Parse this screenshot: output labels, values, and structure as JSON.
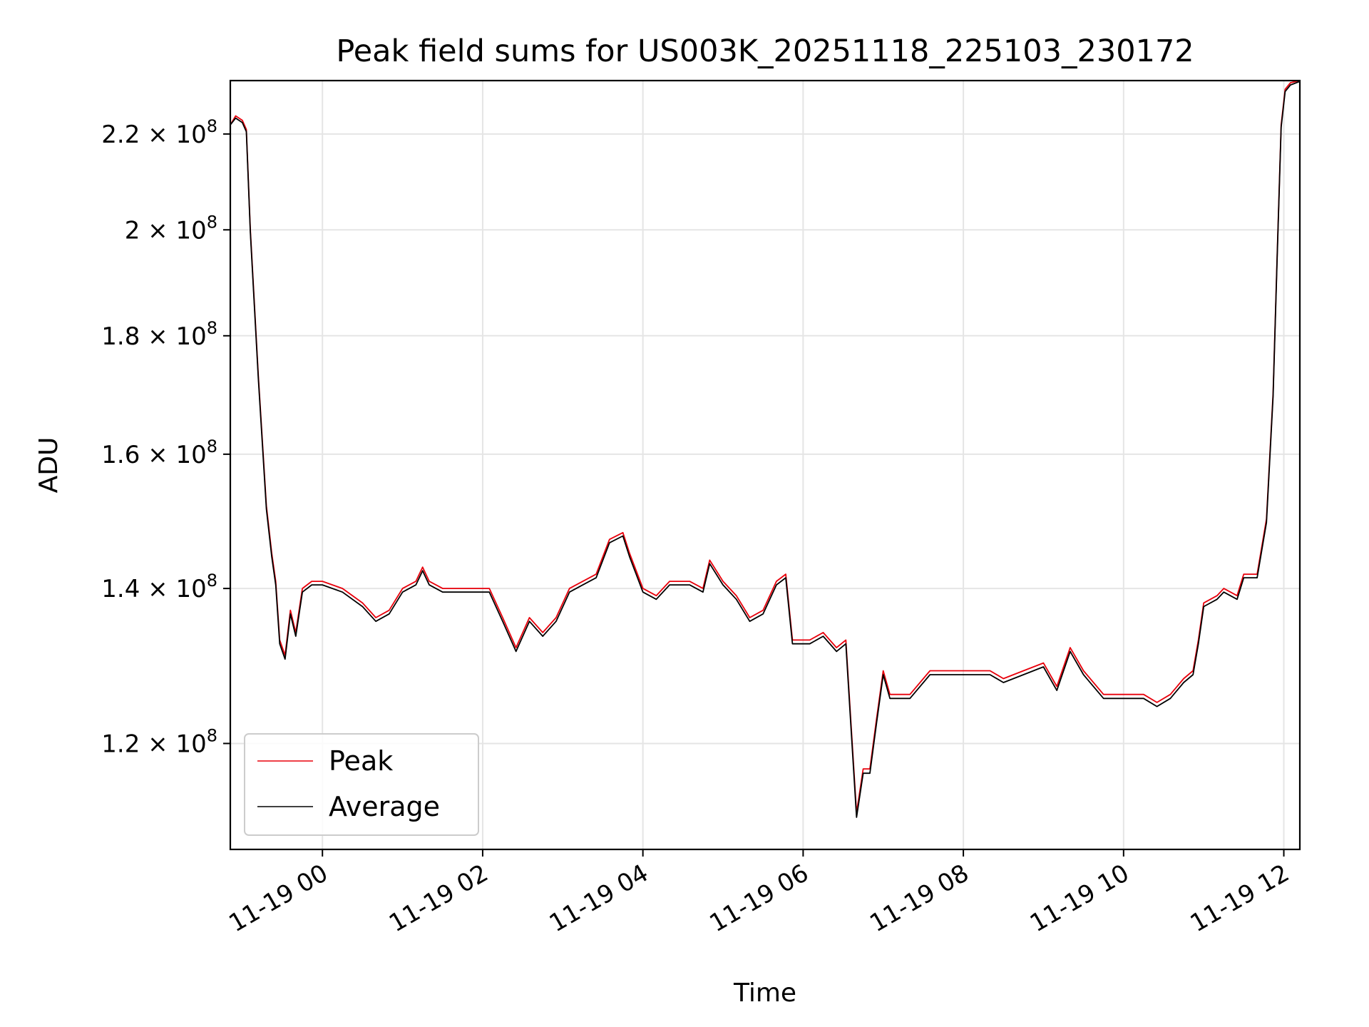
{
  "chart_data": {
    "type": "line",
    "title": "Peak field sums for US003K_20251118_225103_230172",
    "xlabel": "Time",
    "ylabel": "ADU",
    "yscale": "log",
    "xlim": [
      "2025-11-18 22:51",
      "2025-11-19 12:12"
    ],
    "ylim": [
      108000000,
      232000000
    ],
    "grid": true,
    "legend_position": "lower-left",
    "x_ticks": [
      {
        "value": "2025-11-19 00:00",
        "label": "11-19 00"
      },
      {
        "value": "2025-11-19 02:00",
        "label": "11-19 02"
      },
      {
        "value": "2025-11-19 04:00",
        "label": "11-19 04"
      },
      {
        "value": "2025-11-19 06:00",
        "label": "11-19 06"
      },
      {
        "value": "2025-11-19 08:00",
        "label": "11-19 08"
      },
      {
        "value": "2025-11-19 10:00",
        "label": "11-19 10"
      },
      {
        "value": "2025-11-19 12:00",
        "label": "11-19 12"
      }
    ],
    "y_ticks": [
      {
        "value": 120000000,
        "mantissa": "1.2"
      },
      {
        "value": 140000000,
        "mantissa": "1.4"
      },
      {
        "value": 160000000,
        "mantissa": "1.6"
      },
      {
        "value": 180000000,
        "mantissa": "1.8"
      },
      {
        "value": 200000000,
        "mantissa": "2"
      },
      {
        "value": 220000000,
        "mantissa": "2.2"
      }
    ],
    "y_tick_base": "10",
    "y_tick_exponent": "8",
    "series": [
      {
        "name": "Peak",
        "color": "#e8000b",
        "points": [
          [
            "2025-11-18 22:51",
            222000000
          ],
          [
            "2025-11-18 22:55",
            224000000
          ],
          [
            "2025-11-18 23:00",
            223000000
          ],
          [
            "2025-11-18 23:03",
            221000000
          ],
          [
            "2025-11-18 23:06",
            200000000
          ],
          [
            "2025-11-18 23:12",
            173000000
          ],
          [
            "2025-11-18 23:18",
            152000000
          ],
          [
            "2025-11-18 23:22",
            145000000
          ],
          [
            "2025-11-18 23:25",
            141000000
          ],
          [
            "2025-11-18 23:28",
            133000000
          ],
          [
            "2025-11-18 23:32",
            131000000
          ],
          [
            "2025-11-18 23:36",
            137000000
          ],
          [
            "2025-11-18 23:40",
            134000000
          ],
          [
            "2025-11-18 23:45",
            140000000
          ],
          [
            "2025-11-18 23:52",
            141000000
          ],
          [
            "2025-11-19 00:00",
            141000000
          ],
          [
            "2025-11-19 00:15",
            140000000
          ],
          [
            "2025-11-19 00:30",
            138000000
          ],
          [
            "2025-11-19 00:40",
            136000000
          ],
          [
            "2025-11-19 00:50",
            137000000
          ],
          [
            "2025-11-19 01:00",
            140000000
          ],
          [
            "2025-11-19 01:10",
            141000000
          ],
          [
            "2025-11-19 01:15",
            143000000
          ],
          [
            "2025-11-19 01:20",
            141000000
          ],
          [
            "2025-11-19 01:30",
            140000000
          ],
          [
            "2025-11-19 01:50",
            140000000
          ],
          [
            "2025-11-19 02:05",
            140000000
          ],
          [
            "2025-11-19 02:15",
            136000000
          ],
          [
            "2025-11-19 02:25",
            132000000
          ],
          [
            "2025-11-19 02:35",
            136000000
          ],
          [
            "2025-11-19 02:45",
            134000000
          ],
          [
            "2025-11-19 02:55",
            136000000
          ],
          [
            "2025-11-19 03:05",
            140000000
          ],
          [
            "2025-11-19 03:15",
            141000000
          ],
          [
            "2025-11-19 03:25",
            142000000
          ],
          [
            "2025-11-19 03:35",
            147000000
          ],
          [
            "2025-11-19 03:45",
            148000000
          ],
          [
            "2025-11-19 03:50",
            145000000
          ],
          [
            "2025-11-19 04:00",
            140000000
          ],
          [
            "2025-11-19 04:10",
            139000000
          ],
          [
            "2025-11-19 04:20",
            141000000
          ],
          [
            "2025-11-19 04:35",
            141000000
          ],
          [
            "2025-11-19 04:45",
            140000000
          ],
          [
            "2025-11-19 04:50",
            144000000
          ],
          [
            "2025-11-19 05:00",
            141000000
          ],
          [
            "2025-11-19 05:10",
            139000000
          ],
          [
            "2025-11-19 05:20",
            136000000
          ],
          [
            "2025-11-19 05:30",
            137000000
          ],
          [
            "2025-11-19 05:40",
            141000000
          ],
          [
            "2025-11-19 05:47",
            142000000
          ],
          [
            "2025-11-19 05:52",
            133000000
          ],
          [
            "2025-11-19 06:05",
            133000000
          ],
          [
            "2025-11-19 06:15",
            134000000
          ],
          [
            "2025-11-19 06:25",
            132000000
          ],
          [
            "2025-11-19 06:32",
            133000000
          ],
          [
            "2025-11-19 06:36",
            122000000
          ],
          [
            "2025-11-19 06:40",
            112000000
          ],
          [
            "2025-11-19 06:45",
            117000000
          ],
          [
            "2025-11-19 06:50",
            117000000
          ],
          [
            "2025-11-19 06:55",
            123000000
          ],
          [
            "2025-11-19 07:00",
            129000000
          ],
          [
            "2025-11-19 07:05",
            126000000
          ],
          [
            "2025-11-19 07:20",
            126000000
          ],
          [
            "2025-11-19 07:35",
            129000000
          ],
          [
            "2025-11-19 07:50",
            129000000
          ],
          [
            "2025-11-19 08:05",
            129000000
          ],
          [
            "2025-11-19 08:20",
            129000000
          ],
          [
            "2025-11-19 08:30",
            128000000
          ],
          [
            "2025-11-19 08:45",
            129000000
          ],
          [
            "2025-11-19 09:00",
            130000000
          ],
          [
            "2025-11-19 09:10",
            127000000
          ],
          [
            "2025-11-19 09:20",
            132000000
          ],
          [
            "2025-11-19 09:30",
            129000000
          ],
          [
            "2025-11-19 09:45",
            126000000
          ],
          [
            "2025-11-19 10:00",
            126000000
          ],
          [
            "2025-11-19 10:15",
            126000000
          ],
          [
            "2025-11-19 10:25",
            125000000
          ],
          [
            "2025-11-19 10:35",
            126000000
          ],
          [
            "2025-11-19 10:45",
            128000000
          ],
          [
            "2025-11-19 10:52",
            129000000
          ],
          [
            "2025-11-19 10:56",
            133000000
          ],
          [
            "2025-11-19 11:00",
            138000000
          ],
          [
            "2025-11-19 11:10",
            139000000
          ],
          [
            "2025-11-19 11:15",
            140000000
          ],
          [
            "2025-11-19 11:25",
            139000000
          ],
          [
            "2025-11-19 11:30",
            142000000
          ],
          [
            "2025-11-19 11:40",
            142000000
          ],
          [
            "2025-11-19 11:47",
            150000000
          ],
          [
            "2025-11-19 11:52",
            170000000
          ],
          [
            "2025-11-19 11:55",
            195000000
          ],
          [
            "2025-11-19 11:58",
            222000000
          ],
          [
            "2025-11-19 12:01",
            230000000
          ],
          [
            "2025-11-19 12:05",
            231500000
          ],
          [
            "2025-11-19 12:12",
            232000000
          ]
        ]
      },
      {
        "name": "Average",
        "color": "#000000",
        "points": [
          [
            "2025-11-18 22:51",
            222000000
          ],
          [
            "2025-11-18 22:55",
            223500000
          ],
          [
            "2025-11-18 23:00",
            222500000
          ],
          [
            "2025-11-18 23:03",
            220500000
          ],
          [
            "2025-11-18 23:06",
            199500000
          ],
          [
            "2025-11-18 23:12",
            172500000
          ],
          [
            "2025-11-18 23:18",
            151500000
          ],
          [
            "2025-11-18 23:22",
            144500000
          ],
          [
            "2025-11-18 23:25",
            140500000
          ],
          [
            "2025-11-18 23:28",
            132500000
          ],
          [
            "2025-11-18 23:32",
            130500000
          ],
          [
            "2025-11-18 23:36",
            136500000
          ],
          [
            "2025-11-18 23:40",
            133500000
          ],
          [
            "2025-11-18 23:45",
            139500000
          ],
          [
            "2025-11-18 23:52",
            140500000
          ],
          [
            "2025-11-19 00:00",
            140500000
          ],
          [
            "2025-11-19 00:15",
            139500000
          ],
          [
            "2025-11-19 00:30",
            137500000
          ],
          [
            "2025-11-19 00:40",
            135500000
          ],
          [
            "2025-11-19 00:50",
            136500000
          ],
          [
            "2025-11-19 01:00",
            139500000
          ],
          [
            "2025-11-19 01:10",
            140500000
          ],
          [
            "2025-11-19 01:15",
            142500000
          ],
          [
            "2025-11-19 01:20",
            140500000
          ],
          [
            "2025-11-19 01:30",
            139500000
          ],
          [
            "2025-11-19 01:50",
            139500000
          ],
          [
            "2025-11-19 02:05",
            139500000
          ],
          [
            "2025-11-19 02:15",
            135500000
          ],
          [
            "2025-11-19 02:25",
            131500000
          ],
          [
            "2025-11-19 02:35",
            135500000
          ],
          [
            "2025-11-19 02:45",
            133500000
          ],
          [
            "2025-11-19 02:55",
            135500000
          ],
          [
            "2025-11-19 03:05",
            139500000
          ],
          [
            "2025-11-19 03:15",
            140500000
          ],
          [
            "2025-11-19 03:25",
            141500000
          ],
          [
            "2025-11-19 03:35",
            146500000
          ],
          [
            "2025-11-19 03:45",
            147500000
          ],
          [
            "2025-11-19 03:50",
            144500000
          ],
          [
            "2025-11-19 04:00",
            139500000
          ],
          [
            "2025-11-19 04:10",
            138500000
          ],
          [
            "2025-11-19 04:20",
            140500000
          ],
          [
            "2025-11-19 04:35",
            140500000
          ],
          [
            "2025-11-19 04:45",
            139500000
          ],
          [
            "2025-11-19 04:50",
            143500000
          ],
          [
            "2025-11-19 05:00",
            140500000
          ],
          [
            "2025-11-19 05:10",
            138500000
          ],
          [
            "2025-11-19 05:20",
            135500000
          ],
          [
            "2025-11-19 05:30",
            136500000
          ],
          [
            "2025-11-19 05:40",
            140500000
          ],
          [
            "2025-11-19 05:47",
            141500000
          ],
          [
            "2025-11-19 05:52",
            132500000
          ],
          [
            "2025-11-19 06:05",
            132500000
          ],
          [
            "2025-11-19 06:15",
            133500000
          ],
          [
            "2025-11-19 06:25",
            131500000
          ],
          [
            "2025-11-19 06:32",
            132500000
          ],
          [
            "2025-11-19 06:36",
            121500000
          ],
          [
            "2025-11-19 06:40",
            111500000
          ],
          [
            "2025-11-19 06:45",
            116500000
          ],
          [
            "2025-11-19 06:50",
            116500000
          ],
          [
            "2025-11-19 06:55",
            122500000
          ],
          [
            "2025-11-19 07:00",
            128500000
          ],
          [
            "2025-11-19 07:05",
            125500000
          ],
          [
            "2025-11-19 07:20",
            125500000
          ],
          [
            "2025-11-19 07:35",
            128500000
          ],
          [
            "2025-11-19 07:50",
            128500000
          ],
          [
            "2025-11-19 08:05",
            128500000
          ],
          [
            "2025-11-19 08:20",
            128500000
          ],
          [
            "2025-11-19 08:30",
            127500000
          ],
          [
            "2025-11-19 08:45",
            128500000
          ],
          [
            "2025-11-19 09:00",
            129500000
          ],
          [
            "2025-11-19 09:10",
            126500000
          ],
          [
            "2025-11-19 09:20",
            131500000
          ],
          [
            "2025-11-19 09:30",
            128500000
          ],
          [
            "2025-11-19 09:45",
            125500000
          ],
          [
            "2025-11-19 10:00",
            125500000
          ],
          [
            "2025-11-19 10:15",
            125500000
          ],
          [
            "2025-11-19 10:25",
            124500000
          ],
          [
            "2025-11-19 10:35",
            125500000
          ],
          [
            "2025-11-19 10:45",
            127500000
          ],
          [
            "2025-11-19 10:52",
            128500000
          ],
          [
            "2025-11-19 10:56",
            132500000
          ],
          [
            "2025-11-19 11:00",
            137500000
          ],
          [
            "2025-11-19 11:10",
            138500000
          ],
          [
            "2025-11-19 11:15",
            139500000
          ],
          [
            "2025-11-19 11:25",
            138500000
          ],
          [
            "2025-11-19 11:30",
            141500000
          ],
          [
            "2025-11-19 11:40",
            141500000
          ],
          [
            "2025-11-19 11:47",
            149500000
          ],
          [
            "2025-11-19 11:52",
            169500000
          ],
          [
            "2025-11-19 11:55",
            194500000
          ],
          [
            "2025-11-19 11:58",
            221500000
          ],
          [
            "2025-11-19 12:01",
            229500000
          ],
          [
            "2025-11-19 12:05",
            231000000
          ],
          [
            "2025-11-19 12:12",
            231800000
          ]
        ]
      }
    ]
  }
}
